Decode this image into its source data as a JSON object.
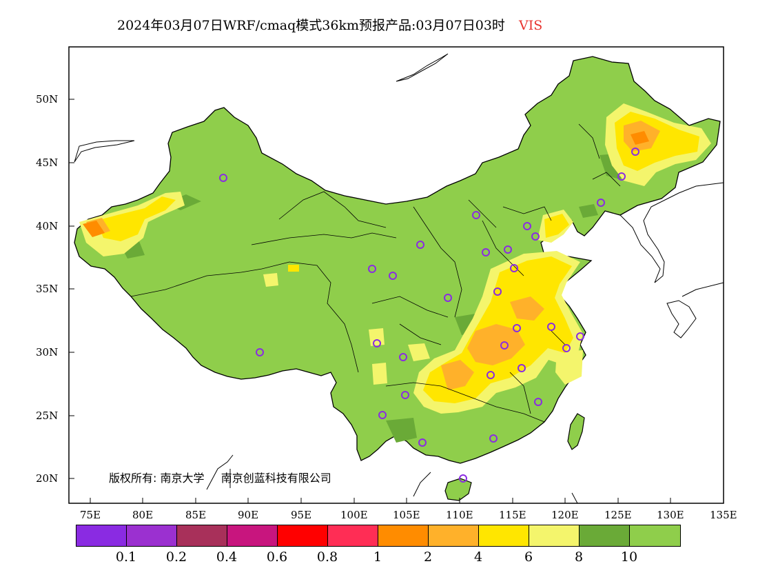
{
  "title": {
    "main": "2024年03月07日WRF/cmaq模式36km预报产品:03月07日03时",
    "variable": "VIS"
  },
  "colors": {
    "land": "#8fce4b",
    "dark_green": "#6aaa37",
    "light_yellow": "#f4f56c",
    "yellow": "#ffe600",
    "light_orange": "#ffb12a",
    "orange": "#ff8c00",
    "station": "#8a2be2",
    "title_var": "#e8332e"
  },
  "axes": {
    "lat_labels": [
      "50N",
      "45N",
      "40N",
      "35N",
      "30N",
      "25N",
      "20N"
    ],
    "lon_labels": [
      "75E",
      "80E",
      "85E",
      "90E",
      "95E",
      "100E",
      "105E",
      "110E",
      "115E",
      "120E",
      "125E",
      "130E",
      "135E"
    ]
  },
  "legend": {
    "colors": [
      "#8a2be2",
      "#9b30d0",
      "#a8305a",
      "#c8157e",
      "#ff0000",
      "#ff2d55",
      "#ff8c00",
      "#ffb12a",
      "#ffe600",
      "#f4f56c",
      "#6aaa37",
      "#8fce4b"
    ],
    "labels": [
      "0.1",
      "0.2",
      "0.4",
      "0.6",
      "0.8",
      "1",
      "2",
      "4",
      "6",
      "8",
      "10"
    ]
  },
  "copyright": {
    "prefix": "版权所有:",
    "org1": "南京大学",
    "org2": "南京创蓝科技有限公司"
  }
}
